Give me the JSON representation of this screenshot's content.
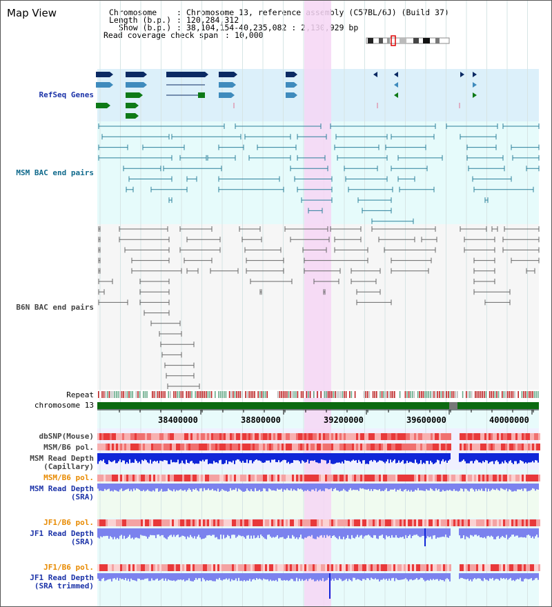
{
  "header": {
    "title": "Map View",
    "chromosome_label": "Chromosome",
    "chromosome_value": "Chromosome 13, reference assembly (C57BL/6J) (Build 37)",
    "length_label": "Length (b.p.)",
    "length_value": "120,284,312",
    "show_label": "Show (b.p.)",
    "show_value": "38,104,154-40,235,082 : 2,130,929 bp",
    "coverage_label": "Read coverage check span",
    "coverage_value": "10,000"
  },
  "tracks": {
    "refseq": "RefSeq Genes",
    "msm_bac": "MSM BAC end pairs",
    "b6n_bac": "B6N BAC end pairs",
    "repeat": "Repeat",
    "chromosome": "chromosome 13",
    "dbsnp": "dbSNP(Mouse)",
    "msm_pol": "MSM/B6 pol.",
    "msm_depth_cap": "MSM Read Depth\n(Capillary)",
    "msm_pol_sra": "MSM/B6 pol.",
    "msm_depth_sra": "MSM Read Depth\n(SRA)",
    "jf1_pol": "JF1/B6 pol.",
    "jf1_depth_sra": "JF1 Read Depth\n(SRA)",
    "jf1_pol_trim": "JF1/B6 pol.",
    "jf1_depth_trim": "JF1 Read Depth\n(SRA trimmed)"
  },
  "axis": {
    "ticks": [
      "38400000",
      "38800000",
      "39200000",
      "39600000",
      "40000000"
    ]
  },
  "colors": {
    "highlight": "#f6d6f4",
    "refseq_bg": "#dcf0fa",
    "bac_bg": "#e6fbfb",
    "gene_navy": "#0b2a63",
    "gene_blue": "#3f8bbd",
    "gene_green": "#0e7a17",
    "chrom_bar": "#0c6a10",
    "snp_red": "#e8393a",
    "depth_blue": "#1026d8",
    "depth_light": "#7b82ee"
  }
}
